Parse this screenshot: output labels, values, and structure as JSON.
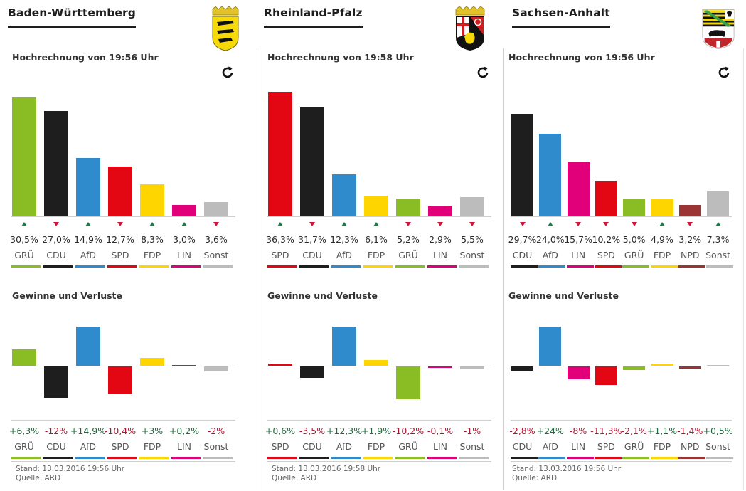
{
  "colors": {
    "GRÜ": "#8abd24",
    "CDU": "#1e1e1e",
    "AfD": "#2f8bcc",
    "SPD": "#e30613",
    "FDP": "#ffd500",
    "LIN": "#e2007a",
    "Sonst": "#bcbcbc",
    "NPD": "#9b3535",
    "trend_up": "#1f7a45",
    "trend_down": "#d0143c",
    "gain_positive": "#1f6b3c",
    "gain_negative": "#b0152f"
  },
  "panels": [
    {
      "state": "Baden-Württemberg",
      "coat_of_arms": "baden-wuerttemberg-coat-icon",
      "projection_title": "Hochrechnung von 19:56 Uhr",
      "refresh_icon": "refresh-icon",
      "gains_title": "Gewinne und Verluste",
      "stand": "Stand: 13.03.2016 19:56 Uhr",
      "source": "Quelle: ARD"
    },
    {
      "state": "Rheinland-Pfalz",
      "coat_of_arms": "rheinland-pfalz-coat-icon",
      "projection_title": "Hochrechnung von 19:58 Uhr",
      "refresh_icon": "refresh-icon",
      "gains_title": "Gewinne und Verluste",
      "stand": "Stand: 13.03.2016 19:58 Uhr",
      "source": "Quelle: ARD"
    },
    {
      "state": "Sachsen-Anhalt",
      "coat_of_arms": "sachsen-anhalt-coat-icon",
      "projection_title": "Hochrechnung von 19:56 Uhr",
      "refresh_icon": "refresh-icon",
      "gains_title": "Gewinne und Verluste",
      "stand": "Stand: 13.03.2016 19:56 Uhr",
      "source": "Quelle: ARD"
    }
  ],
  "chart_data": [
    {
      "type": "bar",
      "title": "Hochrechnung von 19:56 Uhr",
      "state": "Baden-Württemberg",
      "categories": [
        "GRÜ",
        "CDU",
        "AfD",
        "SPD",
        "FDP",
        "LIN",
        "Sonst"
      ],
      "values": [
        30.5,
        27.0,
        14.9,
        12.7,
        8.3,
        3.0,
        3.6
      ],
      "value_labels": [
        "30,5%",
        "27,0%",
        "14,9%",
        "12,7%",
        "8,3%",
        "3,0%",
        "3,6%"
      ],
      "trend": [
        "up",
        "down",
        "up",
        "down",
        "up",
        "up",
        "down"
      ],
      "ylabel": "%"
    },
    {
      "type": "bar",
      "title": "Gewinne und Verluste",
      "state": "Baden-Württemberg",
      "categories": [
        "GRÜ",
        "CDU",
        "AfD",
        "SPD",
        "FDP",
        "LIN",
        "Sonst"
      ],
      "values": [
        6.3,
        -12,
        14.9,
        -10.4,
        3,
        0.2,
        -2
      ],
      "value_labels": [
        "+6,3%",
        "-12%",
        "+14,9%",
        "-10,4%",
        "+3%",
        "+0,2%",
        "-2%"
      ],
      "ylabel": "Prozentpunkte"
    },
    {
      "type": "bar",
      "title": "Hochrechnung von 19:58 Uhr",
      "state": "Rheinland-Pfalz",
      "categories": [
        "SPD",
        "CDU",
        "AfD",
        "FDP",
        "GRÜ",
        "LIN",
        "Sonst"
      ],
      "values": [
        36.3,
        31.7,
        12.3,
        6.1,
        5.2,
        2.9,
        5.5
      ],
      "value_labels": [
        "36,3%",
        "31,7%",
        "12,3%",
        "6,1%",
        "5,2%",
        "2,9%",
        "5,5%"
      ],
      "trend": [
        "up",
        "down",
        "up",
        "up",
        "down",
        "down",
        "down"
      ],
      "ylabel": "%"
    },
    {
      "type": "bar",
      "title": "Gewinne und Verluste",
      "state": "Rheinland-Pfalz",
      "categories": [
        "SPD",
        "CDU",
        "AfD",
        "FDP",
        "GRÜ",
        "LIN",
        "Sonst"
      ],
      "values": [
        0.6,
        -3.5,
        12.3,
        1.9,
        -10.2,
        -0.1,
        -1
      ],
      "value_labels": [
        "+0,6%",
        "-3,5%",
        "+12,3%",
        "+1,9%",
        "-10,2%",
        "-0,1%",
        "-1%"
      ],
      "ylabel": "Prozentpunkte"
    },
    {
      "type": "bar",
      "title": "Hochrechnung von 19:56 Uhr",
      "state": "Sachsen-Anhalt",
      "categories": [
        "CDU",
        "AfD",
        "LIN",
        "SPD",
        "GRÜ",
        "FDP",
        "NPD",
        "Sonst"
      ],
      "values": [
        29.7,
        24.0,
        15.7,
        10.2,
        5.0,
        4.9,
        3.2,
        7.3
      ],
      "value_labels": [
        "29,7%",
        "24,0%",
        "15,7%",
        "10,2%",
        "5,0%",
        "4,9%",
        "3,2%",
        "7,3%"
      ],
      "trend": [
        "down",
        "up",
        "down",
        "down",
        "down",
        "up",
        "down",
        "up"
      ],
      "ylabel": "%"
    },
    {
      "type": "bar",
      "title": "Gewinne und Verluste",
      "state": "Sachsen-Anhalt",
      "categories": [
        "CDU",
        "AfD",
        "LIN",
        "SPD",
        "GRÜ",
        "FDP",
        "NPD",
        "Sonst"
      ],
      "values": [
        -2.8,
        24,
        -8,
        -11.3,
        -2.1,
        1.1,
        -1.4,
        0.5
      ],
      "value_labels": [
        "-2,8%",
        "+24%",
        "-8%",
        "-11,3%",
        "-2,1%",
        "+1,1%",
        "-1,4%",
        "+0,5%"
      ],
      "ylabel": "Prozentpunkte"
    }
  ]
}
